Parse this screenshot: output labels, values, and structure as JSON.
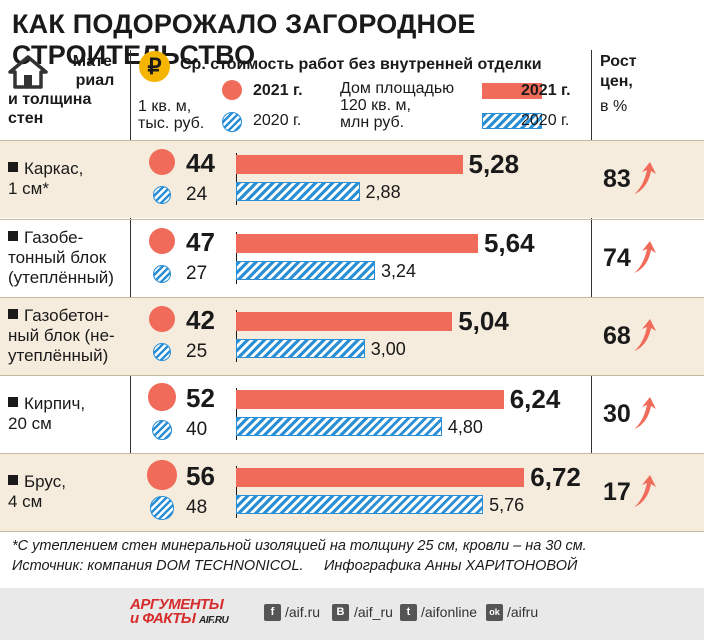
{
  "title": "КАК ПОДОРОЖАЛО ЗАГОРОДНОЕ СТРОИТЕЛЬСТВО",
  "header": {
    "material_label": [
      "Мате-",
      "риал",
      "и толщина",
      "стен"
    ],
    "cost_header": "Ср. стоимость работ без внутренней отделки",
    "per_m2_label": [
      "1 кв. м,",
      "тыс. руб."
    ],
    "house_label": [
      "Дом площадью",
      "120 кв. м,",
      "млн руб."
    ],
    "year_2021": "2021 г.",
    "year_2020": "2020 г.",
    "growth_label": [
      "Рост",
      "цен,",
      "в %"
    ]
  },
  "rows": [
    {
      "material": [
        "Каркас,",
        "1 см*"
      ],
      "m2_2021": "44",
      "m2_2020": "24",
      "house_2021": "5,28",
      "house_2020": "2,88",
      "growth": "83"
    },
    {
      "material": [
        "Газобе-",
        "тонный блок",
        "(утеплённый)"
      ],
      "m2_2021": "47",
      "m2_2020": "27",
      "house_2021": "5,64",
      "house_2020": "3,24",
      "growth": "74"
    },
    {
      "material": [
        "Газобетон-",
        "ный блок (не-",
        "утеплённый)"
      ],
      "m2_2021": "42",
      "m2_2020": "25",
      "house_2021": "5,04",
      "house_2020": "3,00",
      "growth": "68"
    },
    {
      "material": [
        "Кирпич,",
        "20 см"
      ],
      "m2_2021": "52",
      "m2_2020": "40",
      "house_2021": "6,24",
      "house_2020": "4,80",
      "growth": "30"
    },
    {
      "material": [
        "Брус,",
        "4 см"
      ],
      "m2_2021": "56",
      "m2_2020": "48",
      "house_2021": "6,72",
      "house_2020": "5,76",
      "growth": "17"
    }
  ],
  "footnote": "*С утеплением стен минеральной изоляцией на толщину 25 см, кровли – на 30 см.",
  "source": "Источник: компания DOM TECHNONICOL.",
  "credit": "Инфографика Анны ХАРИТОНОВОЙ",
  "footer": {
    "logo_line1": "АРГУМЕНТЫ",
    "logo_line2": "и ФАКТЫ",
    "logo_site": "AIF.RU",
    "social": [
      {
        "icon": "f",
        "text": "/aif.ru"
      },
      {
        "icon": "B",
        "text": "/aif_ru"
      },
      {
        "icon": "t",
        "text": "/aifonline"
      },
      {
        "icon": "ok",
        "text": "/aifru"
      }
    ]
  },
  "colors": {
    "red": "#f06b5a",
    "blue": "#2b8fd6",
    "tint": "#f6ecdd",
    "ruble": "#f5b400"
  },
  "chart_data": {
    "type": "bar",
    "categories": [
      "Каркас, 1 см*",
      "Газобетонный блок (утеплённый)",
      "Газобетонный блок (неутеплённый)",
      "Кирпич, 20 см",
      "Брус, 4 см"
    ],
    "series": [
      {
        "name": "2021 г.",
        "values": [
          5.28,
          5.64,
          5.04,
          6.24,
          6.72
        ]
      },
      {
        "name": "2020 г.",
        "values": [
          2.88,
          3.24,
          3.0,
          4.8,
          5.76
        ]
      }
    ],
    "per_m2": {
      "2021 г.": [
        44,
        47,
        42,
        52,
        56
      ],
      "2020 г.": [
        24,
        27,
        25,
        40,
        48
      ]
    },
    "growth_pct": [
      83,
      74,
      68,
      30,
      17
    ],
    "orientation": "horizontal"
  }
}
